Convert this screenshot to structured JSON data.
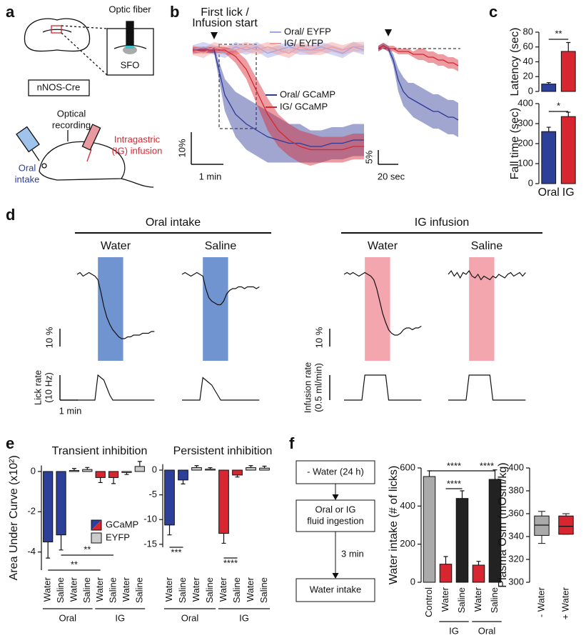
{
  "panel_labels": [
    "a",
    "b",
    "c",
    "d",
    "e",
    "f"
  ],
  "diagram_a": {
    "optic_fiber": "Optic fiber",
    "region": "SFO",
    "mouse_line": "nNOS-Cre",
    "recording": [
      "Optical",
      "recording"
    ],
    "oral": [
      "Oral",
      "intake"
    ],
    "ig": [
      "Intragastric",
      "(IG) infusion"
    ]
  },
  "flow_f": {
    "steps": [
      [
        "- Water (24 h)"
      ],
      [
        "Oral or IG",
        "fluid ingestion"
      ],
      [
        "Water intake"
      ]
    ],
    "delay": "3 min"
  },
  "chart_data": [
    {
      "type": "line",
      "annotation": [
        "First lick /",
        "Infusion start"
      ],
      "event": 40,
      "x": [
        0,
        20,
        40,
        60,
        80,
        100,
        120,
        140,
        160,
        180,
        200,
        220,
        240,
        260,
        280,
        300,
        320
      ],
      "series": [
        {
          "name": "Oral/ EYFP",
          "color": "#9ea6e6",
          "values": [
            0,
            1,
            0,
            -1,
            1,
            0,
            1,
            -1,
            0,
            1,
            0,
            0,
            1,
            0,
            -1,
            1,
            0
          ],
          "errors": [
            1.5,
            1.5,
            1.5,
            1.5,
            1.5,
            1.5,
            1.5,
            1.5,
            1.5,
            1.5,
            1.5,
            1.5,
            1.5,
            1.5,
            1.5,
            1.5,
            1.5
          ]
        },
        {
          "name": "IG/ EYFP",
          "color": "#f29a97",
          "values": [
            0,
            -1,
            1,
            0,
            0,
            1,
            0,
            1,
            0,
            -1,
            1,
            0,
            0,
            1,
            0,
            1,
            1
          ],
          "errors": [
            1.5,
            1.5,
            1.5,
            1.5,
            1.5,
            1.5,
            1.5,
            1.5,
            1.5,
            1.5,
            1.5,
            1.5,
            1.5,
            1.5,
            1.5,
            1.5,
            1.5
          ]
        },
        {
          "name": "Oral/ GCaMP",
          "color": "#2e3a97",
          "values": [
            0,
            0,
            0,
            -14,
            -20,
            -23,
            -25,
            -27,
            -28,
            -29,
            -29,
            -30,
            -30,
            -29,
            -29,
            -28,
            -28
          ],
          "errors": [
            0.5,
            0.5,
            1,
            5,
            7,
            8,
            8,
            8,
            7,
            6,
            6,
            5,
            5,
            5,
            5,
            5,
            5
          ]
        },
        {
          "name": "IG/ GCaMP",
          "color": "#d7262f",
          "values": [
            0,
            0,
            0,
            0,
            -2,
            -6,
            -13,
            -20,
            -25,
            -28,
            -30,
            -31,
            -31,
            -31,
            -31,
            -30,
            -30
          ],
          "errors": [
            1,
            1,
            1,
            1,
            2,
            3,
            4,
            5,
            5,
            5,
            5,
            5,
            4,
            4,
            4,
            4,
            4
          ]
        }
      ],
      "scale_y": {
        "value": 10,
        "label": "10%"
      },
      "scale_x": {
        "value": 60,
        "label": "1 min"
      }
    },
    {
      "type": "line",
      "event": 10,
      "x": [
        0,
        5,
        10,
        15,
        20,
        25,
        30,
        35,
        40,
        45,
        50,
        55,
        60,
        65,
        70,
        75,
        80
      ],
      "series": [
        {
          "color": "#2e3a97",
          "values": [
            0,
            1,
            0,
            -4,
            -11,
            -15,
            -17,
            -18,
            -19,
            -20,
            -21,
            -22,
            -22,
            -23,
            -24,
            -24,
            -25
          ],
          "errors": [
            1,
            1,
            1,
            2,
            4,
            5,
            5,
            6,
            6,
            6,
            6,
            6,
            6,
            6,
            6,
            6,
            6
          ]
        },
        {
          "color": "#d7262f",
          "values": [
            0,
            1,
            0,
            0,
            -1,
            -1,
            -1,
            -2,
            -2,
            -2,
            -3,
            -3,
            -4,
            -4,
            -5,
            -5,
            -6
          ],
          "errors": [
            1,
            1,
            1,
            1,
            1,
            1,
            1,
            1,
            2,
            2,
            2,
            2,
            2,
            2,
            2,
            2,
            2
          ]
        }
      ],
      "scale_y": {
        "value": 5,
        "label": "5%"
      },
      "scale_x": {
        "value": 20,
        "label": "20 sec"
      }
    },
    {
      "type": "bar",
      "ylabel": "Latency (sec)",
      "values": [
        10,
        54
      ],
      "errors": [
        2,
        12
      ],
      "colors": [
        "#2c3f99",
        "#d7262f"
      ],
      "ylim": [
        0,
        80
      ],
      "yticks": [
        0,
        20,
        40,
        60,
        80
      ],
      "significance": [
        {
          "between": [
            0,
            1
          ],
          "label": "**"
        }
      ]
    },
    {
      "type": "bar",
      "ylabel": "Fall time (sec)",
      "categories": [
        "Oral",
        "IG"
      ],
      "values": [
        260,
        335
      ],
      "errors": [
        22,
        22
      ],
      "colors": [
        "#2c3f99",
        "#d7262f"
      ],
      "ylim": [
        0,
        400
      ],
      "yticks": [
        0,
        100,
        200,
        300,
        400
      ],
      "significance": [
        {
          "between": [
            0,
            1
          ],
          "label": "*"
        }
      ]
    },
    {
      "type": "traces",
      "x": [
        0,
        10,
        20,
        30,
        40,
        50,
        60,
        70,
        80,
        90,
        100,
        110,
        120,
        130,
        140,
        150,
        160,
        170,
        180,
        190,
        200,
        210,
        220,
        230,
        240,
        250,
        260
      ],
      "scale_y": {
        "value": 10,
        "label": "10 %"
      },
      "scale_x": {
        "value": 60,
        "label": "1 min"
      },
      "groups": [
        {
          "title": "Oral intake",
          "color": "#7094cf",
          "rate_label": "Lick rate",
          "rate_scale": {
            "value": 10,
            "label": "(10 Hz)"
          },
          "panels": [
            {
              "title": "Water",
              "window": [
                70,
                155
              ],
              "values": [
                0,
                1,
                -1,
                0,
                1,
                0,
                -1,
                -3,
                -10,
                -18,
                -24,
                -28,
                -31,
                -33,
                -35,
                -36,
                -36,
                -35,
                -35,
                -34,
                -34,
                -34,
                -33,
                -33,
                -33,
                -32,
                -32
              ],
              "rate": [
                0,
                0,
                0,
                0,
                0,
                0,
                0,
                10,
                9,
                8,
                5,
                2,
                0,
                0,
                0,
                0,
                0,
                0,
                0,
                0,
                0,
                0,
                0,
                0,
                0,
                0,
                0
              ]
            },
            {
              "title": "Saline",
              "window": [
                70,
                155
              ],
              "values": [
                0,
                1,
                0,
                -1,
                0,
                1,
                0,
                -1,
                -8,
                -13,
                -15,
                -16,
                -17,
                -17,
                -15,
                -11,
                -9,
                -8,
                -8,
                -7,
                -7,
                -8,
                -7,
                -7,
                -7,
                -8,
                -7
              ],
              "rate": [
                0,
                0,
                0,
                0,
                0,
                0,
                0,
                9,
                8,
                7,
                6,
                4,
                2,
                0,
                0,
                0,
                0,
                0,
                0,
                0,
                0,
                0,
                0,
                0,
                0,
                0,
                0
              ]
            }
          ]
        },
        {
          "title": "IG infusion",
          "color": "#f4a6ae",
          "rate_label": "Infusion rate",
          "rate_scale": {
            "value": 0.5,
            "label": "(0.5 ml/min)"
          },
          "panels": [
            {
              "title": "Water",
              "window": [
                70,
                155
              ],
              "values": [
                0,
                1,
                0,
                1,
                0,
                -1,
                0,
                1,
                0,
                -1,
                -3,
                -8,
                -15,
                -22,
                -27,
                -31,
                -33,
                -34,
                -34,
                -33,
                -31,
                -30,
                -30,
                -31,
                -30,
                -30,
                -29
              ],
              "rate": [
                0,
                0,
                0,
                0,
                0,
                0,
                0,
                0.5,
                0.5,
                0.5,
                0.5,
                0.5,
                0.5,
                0.5,
                0.5,
                0,
                0,
                0,
                0,
                0,
                0,
                0,
                0,
                0,
                0,
                0,
                0
              ]
            },
            {
              "title": "Saline",
              "window": [
                70,
                155
              ],
              "values": [
                0,
                2,
                -1,
                1,
                -2,
                1,
                0,
                2,
                -1,
                -2,
                0,
                -3,
                -1,
                -2,
                -3,
                -1,
                -2,
                0,
                -1,
                -2,
                0,
                1,
                -1,
                0,
                1,
                -1,
                1
              ],
              "rate": [
                0,
                0,
                0,
                0,
                0,
                0,
                0,
                0.5,
                0.5,
                0.5,
                0.5,
                0.5,
                0.5,
                0.5,
                0.5,
                0,
                0,
                0,
                0,
                0,
                0,
                0,
                0,
                0,
                0,
                0,
                0
              ]
            }
          ]
        }
      ]
    },
    {
      "type": "bar",
      "title": "Transient inhibition",
      "ylabel": "Area Under Curve (x10²)",
      "categories": [
        "Water",
        "Saline",
        "Water",
        "Saline",
        "Water",
        "Saline",
        "Water",
        "Saline"
      ],
      "groups": [
        {
          "label": "Oral",
          "span": [
            0,
            3
          ]
        },
        {
          "label": "IG",
          "span": [
            4,
            7
          ]
        }
      ],
      "values": [
        -3.5,
        -3.15,
        0.05,
        0.1,
        -0.3,
        -0.3,
        -0.05,
        0.25
      ],
      "errors": [
        0.8,
        0.75,
        0.1,
        0.1,
        0.25,
        0.3,
        0.1,
        0.25
      ],
      "colors": [
        "#2c3f99",
        "#2c3f99",
        "#cccccc",
        "#cccccc",
        "#d7262f",
        "#d7262f",
        "#cccccc",
        "#cccccc"
      ],
      "ylim": [
        -4.9,
        0.3
      ],
      "yticks": [
        0,
        -2,
        -4
      ],
      "legend": [
        {
          "name": "GCaMP",
          "colors": [
            "#2c3f99",
            "#d7262f"
          ]
        },
        {
          "name": "EYFP",
          "colors": [
            "#cccccc"
          ]
        }
      ],
      "significance": [
        {
          "between": [
            1,
            5
          ],
          "label": "**"
        },
        {
          "between": [
            0,
            4
          ],
          "label": "**"
        }
      ]
    },
    {
      "type": "bar",
      "title": "Persistent inhibition",
      "categories": [
        "Water",
        "Saline",
        "Water",
        "Saline",
        "Water",
        "Saline",
        "Water",
        "Saline"
      ],
      "groups": [
        {
          "label": "Oral",
          "span": [
            0,
            3
          ]
        },
        {
          "label": "IG",
          "span": [
            4,
            7
          ]
        }
      ],
      "values": [
        -11.1,
        -2.0,
        0.5,
        0.2,
        -12.8,
        -1.0,
        0.5,
        0.4
      ],
      "errors": [
        2,
        0.8,
        0.4,
        0.3,
        2,
        0.4,
        0.4,
        0.4
      ],
      "colors": [
        "#2c3f99",
        "#2c3f99",
        "#cccccc",
        "#cccccc",
        "#d7262f",
        "#d7262f",
        "#cccccc",
        "#cccccc"
      ],
      "ylim": [
        -15.6,
        1.2
      ],
      "yticks": [
        0,
        -5,
        -10,
        -15
      ],
      "significance": [
        {
          "between": [
            0,
            1
          ],
          "label": "***"
        },
        {
          "between": [
            4,
            5
          ],
          "label": "****"
        }
      ]
    },
    {
      "type": "bar",
      "ylabel": "Water intake (# of licks)",
      "categories": [
        "Control",
        "Water",
        "Saline",
        "Water",
        "Saline"
      ],
      "groups": [
        {
          "label": "IG",
          "span": [
            1,
            2
          ]
        },
        {
          "label": "Oral",
          "span": [
            3,
            4
          ]
        }
      ],
      "values": [
        555,
        95,
        440,
        90,
        540
      ],
      "errors": [
        30,
        40,
        40,
        20,
        50
      ],
      "colors": [
        "#aaaaaa",
        "#d7262f",
        "#222222",
        "#d7262f",
        "#222222"
      ],
      "ylim": [
        0,
        600
      ],
      "yticks": [
        0,
        200,
        400,
        600
      ],
      "significance": [
        {
          "between": [
            0,
            3
          ],
          "label": "****"
        },
        {
          "between": [
            1,
            2
          ],
          "label": "****"
        },
        {
          "between": [
            3,
            4
          ],
          "label": "****"
        }
      ]
    },
    {
      "type": "box",
      "ylabel": "Plasma Osm (mOsm/kg)",
      "categories": [
        "- Water",
        "+ Water"
      ],
      "colors": [
        "#aaaaaa",
        "#d7262f"
      ],
      "boxes": [
        {
          "min": 334,
          "q1": 341,
          "median": 350,
          "q3": 358,
          "max": 362
        },
        {
          "min": 342,
          "q1": 342,
          "median": 349,
          "q3": 358,
          "max": 360
        }
      ],
      "ylim": [
        300,
        400
      ],
      "yticks": [
        300,
        320,
        340,
        360,
        380,
        400
      ]
    }
  ]
}
